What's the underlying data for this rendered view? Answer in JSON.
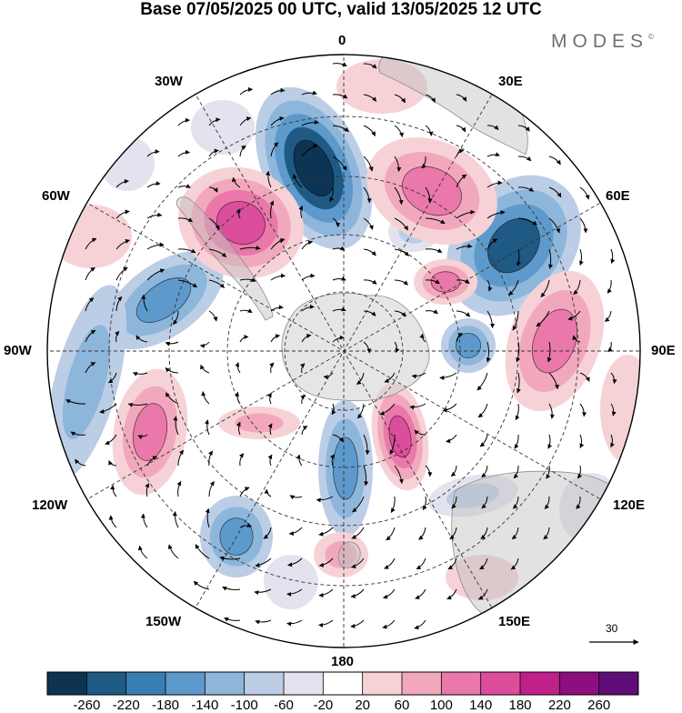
{
  "title": "Base 07/05/2025 00 UTC, valid 13/05/2025 12 UTC",
  "brand": "MODES",
  "brand_mark": "©",
  "map": {
    "projection": "polar-stereographic-south",
    "longitude_labels": {
      "lon_0": "0",
      "lon_30e": "30E",
      "lon_60e": "60E",
      "lon_90e": "90E",
      "lon_120e": "120E",
      "lon_150e": "150E",
      "lon_180": "180",
      "lon_150w": "150W",
      "lon_120w": "120W",
      "lon_90w": "90W",
      "lon_60w": "60W",
      "lon_30w": "30W"
    },
    "graticule": "dashed",
    "wind_vectors": true,
    "reference_vector_label": "30"
  },
  "colorbar": {
    "labels": [
      "-260",
      "-220",
      "-180",
      "-140",
      "-100",
      "-60",
      "-20",
      "20",
      "60",
      "100",
      "140",
      "180",
      "220",
      "260"
    ],
    "colors": [
      "#0d3452",
      "#1f5a85",
      "#3a7fb3",
      "#5d9acb",
      "#8db6db",
      "#bccde6",
      "#e3e3ef",
      "#ffffff",
      "#f6d2d6",
      "#f2a8bc",
      "#ea78aa",
      "#dc4d9c",
      "#bf208a",
      "#8d0f7f",
      "#5f0c79"
    ]
  }
}
